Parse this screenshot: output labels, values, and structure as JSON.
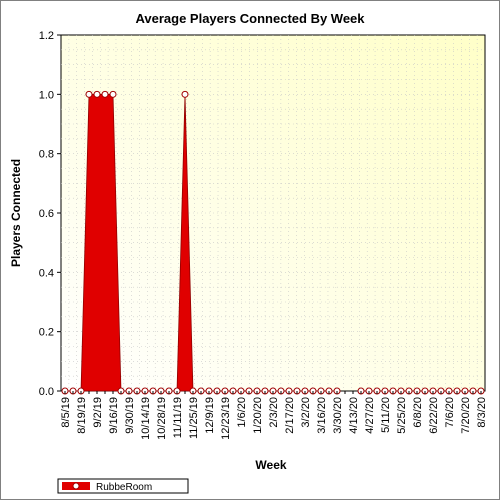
{
  "chart_data": {
    "type": "area",
    "title": "Average Players Connected By Week",
    "xlabel": "Week",
    "ylabel": "Players Connected",
    "ylim": [
      0,
      1.2
    ],
    "yticks": [
      "0.0",
      "0.2",
      "0.4",
      "0.6",
      "0.8",
      "1.0",
      "1.2"
    ],
    "grid": true,
    "legend_position": "bottom-left",
    "x_tick_labels": [
      "8/5/19",
      "8/19/19",
      "9/2/19",
      "9/16/19",
      "9/30/19",
      "10/14/19",
      "10/28/19",
      "11/11/19",
      "11/25/19",
      "12/9/19",
      "12/23/19",
      "1/6/20",
      "1/20/20",
      "2/3/20",
      "2/17/20",
      "3/2/20",
      "3/16/20",
      "3/30/20",
      "4/13/20",
      "4/27/20",
      "5/11/20",
      "5/25/20",
      "6/8/20",
      "6/22/20",
      "7/6/20",
      "7/20/20",
      "8/3/20"
    ],
    "x": [
      "8/5/19",
      "8/12/19",
      "8/19/19",
      "8/26/19",
      "9/2/19",
      "9/9/19",
      "9/16/19",
      "9/23/19",
      "9/30/19",
      "10/7/19",
      "10/14/19",
      "10/21/19",
      "10/28/19",
      "11/4/19",
      "11/11/19",
      "11/18/19",
      "11/25/19",
      "12/2/19",
      "12/9/19",
      "12/16/19",
      "12/23/19",
      "12/30/19",
      "1/6/20",
      "1/13/20",
      "1/20/20",
      "1/27/20",
      "2/3/20",
      "2/10/20",
      "2/17/20",
      "2/24/20",
      "3/2/20",
      "3/9/20",
      "3/16/20",
      "3/23/20",
      "3/30/20",
      "4/6/20",
      "4/13/20",
      "4/20/20",
      "4/27/20",
      "5/4/20",
      "5/11/20",
      "5/18/20",
      "5/25/20",
      "6/1/20",
      "6/8/20",
      "6/15/20",
      "6/22/20",
      "6/29/20",
      "7/6/20",
      "7/13/20",
      "7/20/20",
      "7/27/20",
      "8/3/20"
    ],
    "series": [
      {
        "name": "RubbeRoom",
        "color": "#e00000",
        "values": [
          0,
          0,
          0,
          1,
          1,
          1,
          1,
          0,
          0,
          0,
          0,
          0,
          0,
          0,
          0,
          1,
          0,
          0,
          0,
          0,
          0,
          0,
          0,
          0,
          0,
          0,
          0,
          0,
          0,
          0,
          0,
          0,
          0,
          0,
          0,
          null,
          null,
          0,
          0,
          0,
          0,
          0,
          0,
          0,
          0,
          0,
          0,
          0,
          0,
          0,
          0,
          0,
          0
        ]
      }
    ]
  },
  "colors": {
    "plot_bg_light": "#ffffff",
    "plot_bg_dark": "#ffffc8",
    "grid": "#c8c8c8",
    "series_fill": "#e00000",
    "marker_fill": "#ffffff",
    "marker_stroke": "#a00000"
  }
}
